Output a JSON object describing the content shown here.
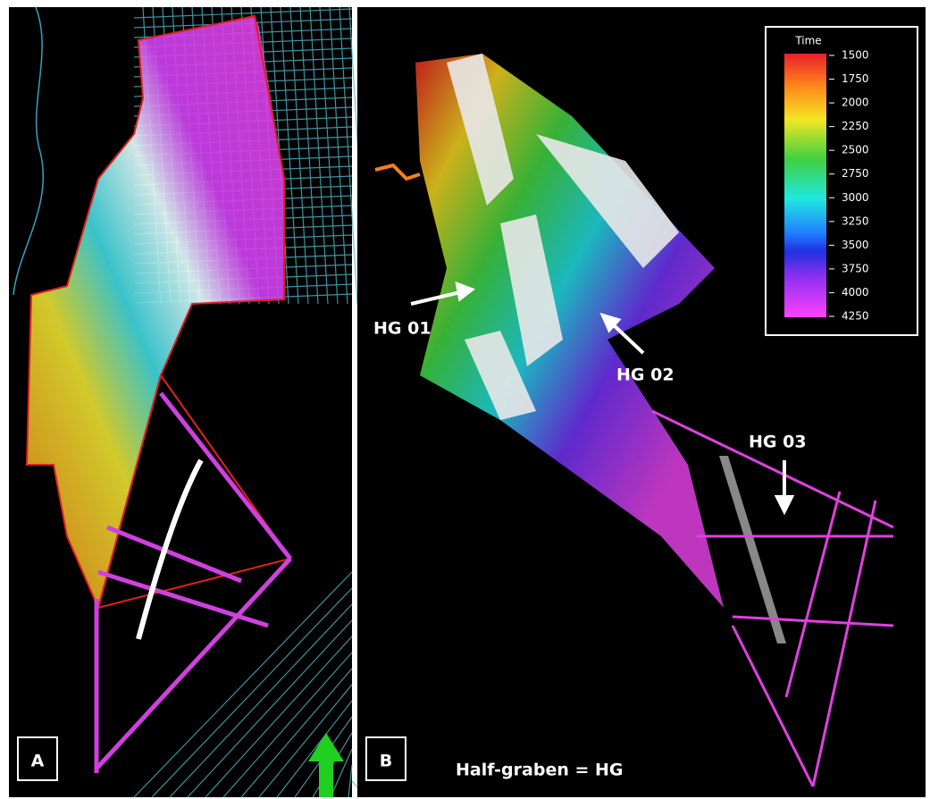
{
  "panels": [
    {
      "label": "A"
    },
    {
      "label": "B",
      "caption": "Half-graben = HG",
      "annotations": [
        "HG 01",
        "HG 02",
        "HG 03"
      ]
    }
  ],
  "legend": {
    "title": "Time",
    "ticks": [
      1500,
      1750,
      2000,
      2250,
      2500,
      2750,
      3000,
      3250,
      3500,
      3750,
      4000,
      4250
    ]
  }
}
